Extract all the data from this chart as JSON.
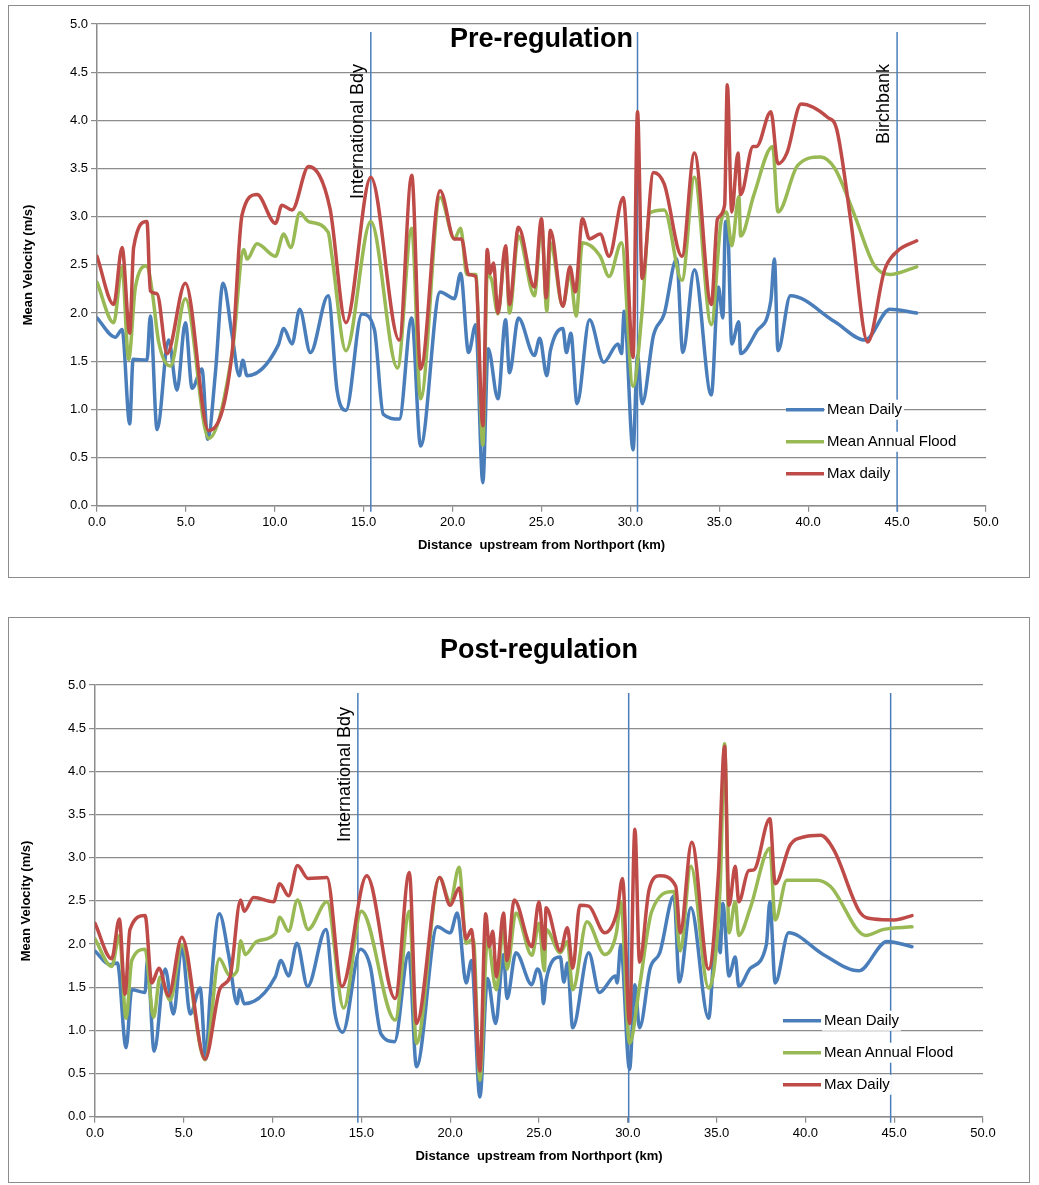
{
  "chart_data": [
    {
      "type": "line",
      "title": "Pre-regulation",
      "xlabel": "Distance  upstream from Northport (km)",
      "ylabel": "Mean Velocity (m/s)",
      "xlim": [
        0,
        50
      ],
      "xticks": [
        {
          "value": 0,
          "label": "0.0"
        },
        {
          "value": 5,
          "label": "5.0"
        },
        {
          "value": 10,
          "label": "10.0"
        },
        {
          "value": 15,
          "label": "15.0"
        },
        {
          "value": 20,
          "label": "20.0"
        },
        {
          "value": 25,
          "label": "25.0"
        },
        {
          "value": 30,
          "label": "30.0"
        },
        {
          "value": 35,
          "label": "35.0"
        },
        {
          "value": 40,
          "label": "40.0"
        },
        {
          "value": 45,
          "label": "45.0"
        },
        {
          "value": 50,
          "label": "50.0"
        }
      ],
      "ylim": [
        0,
        5
      ],
      "yticks": [
        {
          "value": 0,
          "label": "0.0"
        },
        {
          "value": 0.5,
          "label": "0.5"
        },
        {
          "value": 1,
          "label": "1.0"
        },
        {
          "value": 1.5,
          "label": "1.5"
        },
        {
          "value": 2,
          "label": "2.0"
        },
        {
          "value": 2.5,
          "label": "2.5"
        },
        {
          "value": 3,
          "label": "3.0"
        },
        {
          "value": 3.5,
          "label": "3.5"
        },
        {
          "value": 4,
          "label": "4.0"
        },
        {
          "value": 4.5,
          "label": "4.5"
        },
        {
          "value": 5,
          "label": "5.0"
        }
      ],
      "grid": "y",
      "legend": "bottom right",
      "marker": "none",
      "line_style": "solid",
      "ref_lines": [
        {
          "axis": "x",
          "value": 15.4,
          "label": "International Bdy",
          "color": "#4a7ebb"
        },
        {
          "axis": "x",
          "value": 30.4,
          "label": null,
          "color": "#4a7ebb"
        },
        {
          "axis": "x",
          "value": 45.0,
          "label": "Birchbank",
          "color": "#4a7ebb"
        }
      ],
      "series": [
        {
          "name": "Mean Daily",
          "color": "#4a7ebb",
          "x": [
            0,
            1.03,
            1.41,
            1.84,
            2.03,
            2.81,
            3.0,
            3.38,
            4.03,
            4.5,
            4.97,
            5.35,
            5.9,
            6.23,
            6.66,
            7.09,
            7.6,
            8.0,
            8.2,
            8.44,
            10.2,
            10.5,
            10.97,
            11.4,
            12.0,
            13.0,
            13.5,
            14.0,
            14.9,
            15.6,
            16.1,
            17.0,
            17.7,
            18.2,
            19.3,
            20.1,
            20.45,
            20.9,
            21.3,
            21.7,
            22.0,
            22.55,
            22.98,
            23.2,
            23.7,
            24.6,
            24.9,
            25.3,
            25.5,
            26.2,
            26.4,
            26.65,
            27.0,
            27.7,
            28.5,
            29.3,
            29.5,
            29.65,
            30.15,
            30.4,
            30.66,
            31.3,
            31.9,
            32.6,
            32.95,
            33.6,
            34.55,
            34.95,
            35.2,
            35.35,
            35.45,
            35.7,
            36.1,
            36.2,
            37.1,
            37.9,
            38.1,
            38.3,
            39.0,
            41.5,
            43.2,
            44.6,
            46.1
          ],
          "values": [
            1.95,
            1.75,
            1.83,
            0.85,
            1.52,
            1.51,
            1.97,
            0.79,
            1.72,
            1.2,
            1.9,
            1.22,
            1.42,
            0.69,
            1.38,
            2.31,
            1.77,
            1.35,
            1.51,
            1.35,
            1.67,
            1.84,
            1.68,
            2.04,
            1.59,
            2.18,
            1.2,
            0.99,
            1.99,
            1.83,
            0.95,
            0.9,
            1.95,
            0.62,
            2.22,
            2.15,
            2.41,
            1.59,
            1.88,
            0.24,
            1.63,
            1.11,
            1.93,
            1.38,
            1.95,
            1.56,
            1.74,
            1.35,
            1.61,
            1.84,
            1.59,
            1.79,
            1.06,
            1.93,
            1.49,
            1.68,
            1.58,
            2.02,
            0.58,
            1.56,
            1.06,
            1.77,
            1.99,
            2.56,
            1.59,
            2.45,
            1.15,
            2.27,
            1.95,
            2.95,
            2.95,
            1.68,
            1.91,
            1.58,
            1.81,
            2.13,
            2.56,
            1.61,
            2.18,
            1.91,
            1.72,
            2.04,
            2.0
          ]
        },
        {
          "name": "Mean Annual Flood",
          "color": "#98b954",
          "x": [
            0,
            0.94,
            1.41,
            1.78,
            2.16,
            2.81,
            3.1,
            3.47,
            4.13,
            4.97,
            6.28,
            7.6,
            8.26,
            8.44,
            9.0,
            10.04,
            10.5,
            10.9,
            11.4,
            11.9,
            13.0,
            13.2,
            14.0,
            15.4,
            16.9,
            17.7,
            18.2,
            19.3,
            20.1,
            20.45,
            20.8,
            21.3,
            21.7,
            21.95,
            22.2,
            22.55,
            22.98,
            23.2,
            23.7,
            24.6,
            25.0,
            25.3,
            25.5,
            26.2,
            26.6,
            26.95,
            27.3,
            28.3,
            28.8,
            29.5,
            30.15,
            30.66,
            31.1,
            31.9,
            32.9,
            33.6,
            34.55,
            35.1,
            35.4,
            35.7,
            36.1,
            36.2,
            36.95,
            38.0,
            38.3,
            39.4,
            40.7,
            41.5,
            42.6,
            43.7,
            44.6,
            46.1
          ],
          "values": [
            2.32,
            1.9,
            2.48,
            1.52,
            2.27,
            2.49,
            2.23,
            1.7,
            1.45,
            2.15,
            0.7,
            1.58,
            2.66,
            2.56,
            2.72,
            2.59,
            2.82,
            2.68,
            3.04,
            2.95,
            2.84,
            2.61,
            1.61,
            2.95,
            1.43,
            2.88,
            1.11,
            3.2,
            2.77,
            2.88,
            2.4,
            2.4,
            0.63,
            2.4,
            2.34,
            1.99,
            2.68,
            2.0,
            2.8,
            2.18,
            2.93,
            2.02,
            2.73,
            2.07,
            2.41,
            1.97,
            2.73,
            2.59,
            2.38,
            2.73,
            1.24,
            2.02,
            3.04,
            3.07,
            2.34,
            3.41,
            1.88,
            2.95,
            3.05,
            2.7,
            3.21,
            2.8,
            3.23,
            3.73,
            3.05,
            3.53,
            3.62,
            3.5,
            3.02,
            2.5,
            2.4,
            2.48
          ]
        },
        {
          "name": "Max daily",
          "color": "#be4b48",
          "x": [
            0,
            0.94,
            1.41,
            1.84,
            2.06,
            2.81,
            3.0,
            3.38,
            3.94,
            4.97,
            6.28,
            7.6,
            8.16,
            9.0,
            10.04,
            10.4,
            10.97,
            11.9,
            13.1,
            14.0,
            15.4,
            17.0,
            17.7,
            18.2,
            19.3,
            20.1,
            20.5,
            20.9,
            21.3,
            21.7,
            21.95,
            22.1,
            22.3,
            22.55,
            22.98,
            23.2,
            23.7,
            24.6,
            25.0,
            25.26,
            25.5,
            26.2,
            26.6,
            26.9,
            27.3,
            27.7,
            28.3,
            28.8,
            29.6,
            30.15,
            30.4,
            30.66,
            31.3,
            31.9,
            32.9,
            33.6,
            34.55,
            34.9,
            35.3,
            35.45,
            35.7,
            36.05,
            36.2,
            36.9,
            37.1,
            37.9,
            38.3,
            38.8,
            39.6,
            41.1,
            41.6,
            42.4,
            43.35,
            44.3,
            45.0,
            46.1
          ],
          "values": [
            2.59,
            2.09,
            2.68,
            1.79,
            2.68,
            2.95,
            2.23,
            2.2,
            1.58,
            2.31,
            0.78,
            1.59,
            3.02,
            3.23,
            2.93,
            3.12,
            3.07,
            3.52,
            3.09,
            1.9,
            3.41,
            1.72,
            3.43,
            1.42,
            3.27,
            2.77,
            2.77,
            2.4,
            2.38,
            0.83,
            2.66,
            2.41,
            2.52,
            2.0,
            2.7,
            2.09,
            2.89,
            2.27,
            2.98,
            2.16,
            2.86,
            2.07,
            2.48,
            2.22,
            2.98,
            2.77,
            2.82,
            2.59,
            3.2,
            1.54,
            4.09,
            2.36,
            3.46,
            3.34,
            2.59,
            3.66,
            2.09,
            2.98,
            3.12,
            4.37,
            3.05,
            3.66,
            3.23,
            3.73,
            3.73,
            4.09,
            3.55,
            3.66,
            4.17,
            4.03,
            3.91,
            2.95,
            1.7,
            2.45,
            2.64,
            2.75
          ]
        }
      ]
    },
    {
      "type": "line",
      "title": "Post-regulation",
      "xlabel": "Distance  upstream from Northport (km)",
      "ylabel": "Mean Velocity (m/s)",
      "xlim": [
        0,
        50
      ],
      "xticks": [
        {
          "value": 0,
          "label": "0.0"
        },
        {
          "value": 5,
          "label": "5.0"
        },
        {
          "value": 10,
          "label": "10.0"
        },
        {
          "value": 15,
          "label": "15.0"
        },
        {
          "value": 20,
          "label": "20.0"
        },
        {
          "value": 25,
          "label": "25.0"
        },
        {
          "value": 30,
          "label": "30.0"
        },
        {
          "value": 35,
          "label": "35.0"
        },
        {
          "value": 40,
          "label": "40.0"
        },
        {
          "value": 45,
          "label": "45.0"
        },
        {
          "value": 50,
          "label": "50.0"
        }
      ],
      "ylim": [
        0,
        5
      ],
      "yticks": [
        {
          "value": 0,
          "label": "0.0"
        },
        {
          "value": 0.5,
          "label": "0.5"
        },
        {
          "value": 1,
          "label": "1.0"
        },
        {
          "value": 1.5,
          "label": "1.5"
        },
        {
          "value": 2,
          "label": "2.0"
        },
        {
          "value": 2.5,
          "label": "2.5"
        },
        {
          "value": 3,
          "label": "3.0"
        },
        {
          "value": 3.5,
          "label": "3.5"
        },
        {
          "value": 4,
          "label": "4.0"
        },
        {
          "value": 4.5,
          "label": "4.5"
        },
        {
          "value": 5,
          "label": "5.0"
        }
      ],
      "grid": "y",
      "legend": "bottom right",
      "marker": "none",
      "line_style": "solid",
      "ref_lines": [
        {
          "axis": "x",
          "value": 14.8,
          "label": "International Bdy",
          "color": "#4a7ebb"
        },
        {
          "axis": "x",
          "value": 30.05,
          "label": null,
          "color": "#4a7ebb"
        },
        {
          "axis": "x",
          "value": 44.8,
          "label": null,
          "color": "#4a7ebb"
        }
      ],
      "series": [
        {
          "name": "Mean Daily",
          "color": "#4a7ebb",
          "x": [
            0,
            0.85,
            1.26,
            1.75,
            2.07,
            2.82,
            2.95,
            3.33,
            3.95,
            4.42,
            4.89,
            5.36,
            5.92,
            6.24,
            6.48,
            7.0,
            7.52,
            8.0,
            8.14,
            8.4,
            10.15,
            10.47,
            10.9,
            11.37,
            11.97,
            13.0,
            13.5,
            13.95,
            14.94,
            15.5,
            16.1,
            16.86,
            17.67,
            18.1,
            19.27,
            20.0,
            20.4,
            20.9,
            21.2,
            21.67,
            22.1,
            22.56,
            23.0,
            23.2,
            23.7,
            24.6,
            24.9,
            25.15,
            25.25,
            25.4,
            26.2,
            26.4,
            26.6,
            26.9,
            27.8,
            28.4,
            29.3,
            29.4,
            29.6,
            30.1,
            30.4,
            30.66,
            31.26,
            31.8,
            32.6,
            32.9,
            33.55,
            34.55,
            35.0,
            35.2,
            35.35,
            35.7,
            36.05,
            36.25,
            36.9,
            37.8,
            38.0,
            38.3,
            39.06,
            41.0,
            43.0,
            44.6,
            46.0
          ],
          "values": [
            1.92,
            1.76,
            1.78,
            0.8,
            1.47,
            1.44,
            1.81,
            0.76,
            1.71,
            1.19,
            1.97,
            1.19,
            1.49,
            0.67,
            1.39,
            2.35,
            1.88,
            1.31,
            1.47,
            1.31,
            1.62,
            1.81,
            1.63,
            2.01,
            1.51,
            2.17,
            1.21,
            0.98,
            1.94,
            1.74,
            0.96,
            0.87,
            1.9,
            0.58,
            2.2,
            2.13,
            2.36,
            1.55,
            1.81,
            0.23,
            1.6,
            1.08,
            1.88,
            1.37,
            1.9,
            1.53,
            1.71,
            1.56,
            1.31,
            1.58,
            1.85,
            1.56,
            1.78,
            1.03,
            1.9,
            1.44,
            1.63,
            1.55,
            1.99,
            0.55,
            1.53,
            1.03,
            1.72,
            1.9,
            2.56,
            1.56,
            2.42,
            1.14,
            2.24,
            1.9,
            2.47,
            1.63,
            1.85,
            1.51,
            1.72,
            1.99,
            2.49,
            1.55,
            2.13,
            1.88,
            1.69,
            2.03,
            1.97
          ]
        },
        {
          "name": "Mean Annual Flood",
          "color": "#98b954",
          "x": [
            0,
            0.94,
            1.37,
            1.75,
            2.07,
            2.82,
            3.3,
            3.66,
            4.23,
            4.89,
            6.2,
            7.0,
            7.6,
            8.0,
            8.2,
            8.46,
            9.1,
            10.15,
            10.4,
            10.9,
            11.4,
            12.0,
            13.06,
            14.0,
            15.0,
            16.9,
            17.7,
            18.1,
            19.4,
            20.0,
            20.5,
            20.9,
            21.3,
            21.67,
            22.1,
            22.6,
            23.0,
            23.2,
            23.7,
            24.6,
            25.0,
            25.3,
            25.4,
            26.2,
            26.6,
            26.9,
            27.7,
            28.7,
            29.35,
            29.6,
            30.1,
            30.66,
            31.35,
            32.6,
            32.95,
            33.55,
            34.55,
            35.2,
            35.45,
            35.7,
            36.05,
            36.25,
            36.9,
            38.0,
            38.3,
            38.95,
            40.65,
            41.4,
            43.4,
            44.4,
            46.0
          ],
          "values": [
            2.06,
            1.74,
            2.1,
            1.14,
            1.81,
            1.94,
            1.15,
            1.62,
            1.35,
            1.99,
            0.66,
            1.83,
            1.63,
            1.69,
            2.04,
            1.88,
            2.03,
            2.12,
            2.31,
            2.15,
            2.51,
            2.17,
            2.49,
            1.26,
            2.38,
            1.12,
            2.38,
            0.85,
            2.77,
            2.49,
            2.89,
            2.01,
            2.06,
            0.42,
            2.06,
            1.47,
            2.2,
            1.71,
            2.36,
            1.87,
            2.24,
            1.69,
            2.17,
            1.9,
            2.03,
            1.47,
            2.26,
            1.88,
            2.12,
            2.49,
            0.85,
            1.51,
            2.38,
            2.61,
            1.92,
            2.9,
            1.49,
            2.67,
            4.32,
            2.13,
            2.49,
            2.1,
            2.42,
            3.11,
            2.28,
            2.74,
            2.74,
            2.67,
            2.1,
            2.17,
            2.2
          ]
        },
        {
          "name": "Max Daily",
          "color": "#be4b48",
          "x": [
            0,
            0.94,
            1.37,
            1.69,
            1.97,
            2.82,
            3.2,
            3.6,
            4.14,
            4.89,
            6.2,
            7.05,
            7.6,
            8.2,
            8.4,
            8.93,
            10.06,
            10.4,
            10.9,
            11.4,
            12.0,
            13.06,
            13.9,
            15.3,
            16.9,
            17.7,
            18.1,
            19.4,
            20.0,
            20.5,
            20.9,
            21.2,
            21.67,
            22.0,
            22.2,
            22.4,
            22.6,
            23.0,
            23.2,
            23.6,
            24.6,
            25.0,
            25.3,
            25.4,
            26.2,
            26.6,
            26.9,
            27.3,
            27.8,
            28.7,
            29.4,
            29.7,
            30.1,
            30.4,
            30.66,
            31.2,
            31.8,
            32.7,
            32.95,
            33.6,
            34.55,
            35.1,
            35.45,
            35.7,
            36.05,
            36.25,
            36.8,
            37.1,
            38.0,
            38.3,
            39.15,
            39.9,
            40.85,
            41.6,
            43.1,
            43.85,
            45.0,
            46.0
          ],
          "values": [
            2.24,
            1.83,
            2.29,
            1.42,
            2.17,
            2.33,
            1.55,
            1.72,
            1.4,
            2.08,
            0.67,
            1.49,
            1.62,
            2.51,
            2.38,
            2.54,
            2.49,
            2.7,
            2.56,
            2.91,
            2.76,
            2.77,
            1.51,
            2.79,
            1.37,
            2.83,
            1.08,
            2.77,
            2.45,
            2.65,
            2.06,
            2.17,
            0.53,
            2.35,
            1.97,
            2.15,
            1.62,
            2.36,
            1.81,
            2.51,
            1.97,
            2.49,
            1.94,
            2.42,
            1.92,
            2.19,
            1.72,
            2.45,
            2.44,
            2.13,
            2.38,
            2.76,
            1.08,
            3.33,
            1.79,
            2.63,
            2.79,
            2.67,
            2.13,
            3.18,
            1.71,
            2.81,
            4.29,
            2.45,
            2.9,
            2.49,
            2.85,
            2.86,
            3.45,
            2.7,
            3.15,
            3.24,
            3.26,
            3.09,
            2.36,
            2.29,
            2.28,
            2.33
          ]
        }
      ]
    }
  ]
}
